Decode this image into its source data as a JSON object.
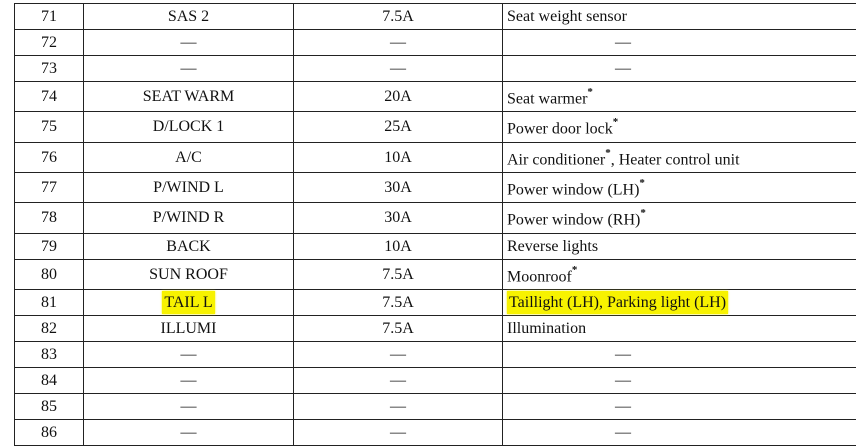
{
  "rows": [
    {
      "no": "71",
      "name": "SAS 2",
      "amp": "7.5A",
      "desc": "Seat weight sensor",
      "star": "",
      "highlight": false
    },
    {
      "no": "72",
      "name": "—",
      "amp": "—",
      "desc": "—",
      "star": "",
      "highlight": false
    },
    {
      "no": "73",
      "name": "—",
      "amp": "—",
      "desc": "—",
      "star": "",
      "highlight": false
    },
    {
      "no": "74",
      "name": "SEAT WARM",
      "amp": "20A",
      "desc": "Seat warmer",
      "star": "*",
      "highlight": false
    },
    {
      "no": "75",
      "name": "D/LOCK 1",
      "amp": "25A",
      "desc": "Power door lock",
      "star": "*",
      "highlight": false
    },
    {
      "no": "76",
      "name": "A/C",
      "amp": "10A",
      "desc": "Air conditioner",
      "star": "*",
      "desc_after": ", Heater control unit",
      "highlight": false
    },
    {
      "no": "77",
      "name": "P/WIND L",
      "amp": "30A",
      "desc": "Power window (LH)",
      "star": "*",
      "highlight": false
    },
    {
      "no": "78",
      "name": "P/WIND R",
      "amp": "30A",
      "desc": "Power window (RH)",
      "star": "*",
      "highlight": false
    },
    {
      "no": "79",
      "name": "BACK",
      "amp": "10A",
      "desc": "Reverse lights",
      "star": "",
      "highlight": false
    },
    {
      "no": "80",
      "name": "SUN ROOF",
      "amp": "7.5A",
      "desc": "Moonroof",
      "star": "*",
      "highlight": false
    },
    {
      "no": "81",
      "name": "TAIL L",
      "amp": "7.5A",
      "desc": "Taillight (LH), Parking light (LH)",
      "star": "",
      "highlight": true
    },
    {
      "no": "82",
      "name": "ILLUMI",
      "amp": "7.5A",
      "desc": "Illumination",
      "star": "",
      "highlight": false
    },
    {
      "no": "83",
      "name": "—",
      "amp": "—",
      "desc": "—",
      "star": "",
      "highlight": false
    },
    {
      "no": "84",
      "name": "—",
      "amp": "—",
      "desc": "—",
      "star": "",
      "highlight": false
    },
    {
      "no": "85",
      "name": "—",
      "amp": "—",
      "desc": "—",
      "star": "",
      "highlight": false
    },
    {
      "no": "86",
      "name": "—",
      "amp": "—",
      "desc": "—",
      "star": "",
      "highlight": false
    }
  ],
  "highlight_color": "#f7f200"
}
